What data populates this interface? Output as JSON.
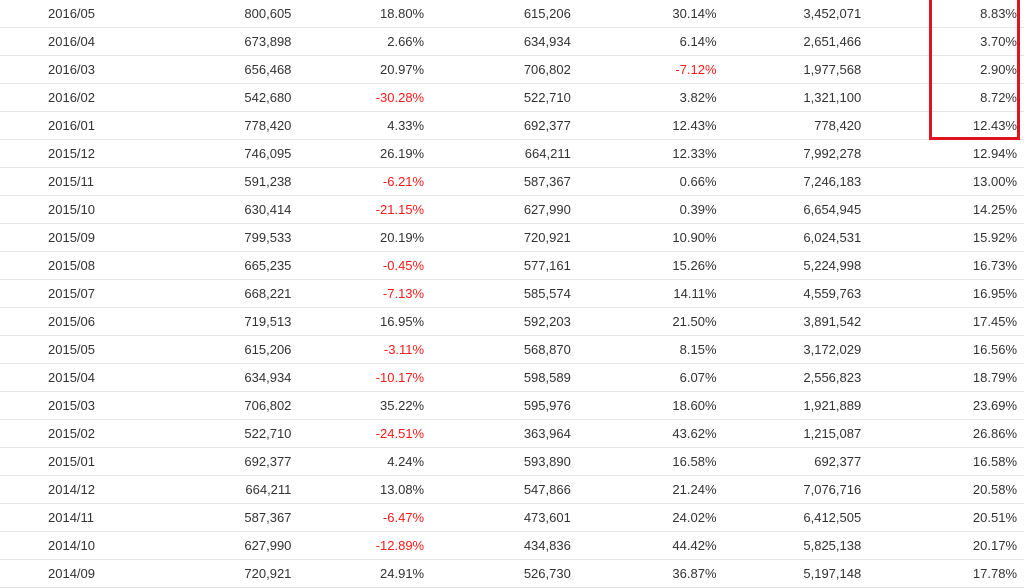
{
  "colors": {
    "negative": "#ff1a1a",
    "highlight": "#e0141e",
    "row_border": "#e6e6e6"
  },
  "rows": [
    {
      "month": "2016/05",
      "v1": "800,605",
      "v2": "18.80%",
      "v3": "615,206",
      "v4": "30.14%",
      "v5": "3,452,071",
      "v6": "8.83%"
    },
    {
      "month": "2016/04",
      "v1": "673,898",
      "v2": "2.66%",
      "v3": "634,934",
      "v4": "6.14%",
      "v5": "2,651,466",
      "v6": "3.70%"
    },
    {
      "month": "2016/03",
      "v1": "656,468",
      "v2": "20.97%",
      "v3": "706,802",
      "v4": "-7.12%",
      "v5": "1,977,568",
      "v6": "2.90%"
    },
    {
      "month": "2016/02",
      "v1": "542,680",
      "v2": "-30.28%",
      "v3": "522,710",
      "v4": "3.82%",
      "v5": "1,321,100",
      "v6": "8.72%"
    },
    {
      "month": "2016/01",
      "v1": "778,420",
      "v2": "4.33%",
      "v3": "692,377",
      "v4": "12.43%",
      "v5": "778,420",
      "v6": "12.43%"
    },
    {
      "month": "2015/12",
      "v1": "746,095",
      "v2": "26.19%",
      "v3": "664,211",
      "v4": "12.33%",
      "v5": "7,992,278",
      "v6": "12.94%"
    },
    {
      "month": "2015/11",
      "v1": "591,238",
      "v2": "-6.21%",
      "v3": "587,367",
      "v4": "0.66%",
      "v5": "7,246,183",
      "v6": "13.00%"
    },
    {
      "month": "2015/10",
      "v1": "630,414",
      "v2": "-21.15%",
      "v3": "627,990",
      "v4": "0.39%",
      "v5": "6,654,945",
      "v6": "14.25%"
    },
    {
      "month": "2015/09",
      "v1": "799,533",
      "v2": "20.19%",
      "v3": "720,921",
      "v4": "10.90%",
      "v5": "6,024,531",
      "v6": "15.92%"
    },
    {
      "month": "2015/08",
      "v1": "665,235",
      "v2": "-0.45%",
      "v3": "577,161",
      "v4": "15.26%",
      "v5": "5,224,998",
      "v6": "16.73%"
    },
    {
      "month": "2015/07",
      "v1": "668,221",
      "v2": "-7.13%",
      "v3": "585,574",
      "v4": "14.11%",
      "v5": "4,559,763",
      "v6": "16.95%"
    },
    {
      "month": "2015/06",
      "v1": "719,513",
      "v2": "16.95%",
      "v3": "592,203",
      "v4": "21.50%",
      "v5": "3,891,542",
      "v6": "17.45%"
    },
    {
      "month": "2015/05",
      "v1": "615,206",
      "v2": "-3.11%",
      "v3": "568,870",
      "v4": "8.15%",
      "v5": "3,172,029",
      "v6": "16.56%"
    },
    {
      "month": "2015/04",
      "v1": "634,934",
      "v2": "-10.17%",
      "v3": "598,589",
      "v4": "6.07%",
      "v5": "2,556,823",
      "v6": "18.79%"
    },
    {
      "month": "2015/03",
      "v1": "706,802",
      "v2": "35.22%",
      "v3": "595,976",
      "v4": "18.60%",
      "v5": "1,921,889",
      "v6": "23.69%"
    },
    {
      "month": "2015/02",
      "v1": "522,710",
      "v2": "-24.51%",
      "v3": "363,964",
      "v4": "43.62%",
      "v5": "1,215,087",
      "v6": "26.86%"
    },
    {
      "month": "2015/01",
      "v1": "692,377",
      "v2": "4.24%",
      "v3": "593,890",
      "v4": "16.58%",
      "v5": "692,377",
      "v6": "16.58%"
    },
    {
      "month": "2014/12",
      "v1": "664,211",
      "v2": "13.08%",
      "v3": "547,866",
      "v4": "21.24%",
      "v5": "7,076,716",
      "v6": "20.58%"
    },
    {
      "month": "2014/11",
      "v1": "587,367",
      "v2": "-6.47%",
      "v3": "473,601",
      "v4": "24.02%",
      "v5": "6,412,505",
      "v6": "20.51%"
    },
    {
      "month": "2014/10",
      "v1": "627,990",
      "v2": "-12.89%",
      "v3": "434,836",
      "v4": "44.42%",
      "v5": "5,825,138",
      "v6": "20.17%"
    },
    {
      "month": "2014/09",
      "v1": "720,921",
      "v2": "24.91%",
      "v3": "526,730",
      "v4": "36.87%",
      "v5": "5,197,148",
      "v6": "17.78%"
    }
  ]
}
